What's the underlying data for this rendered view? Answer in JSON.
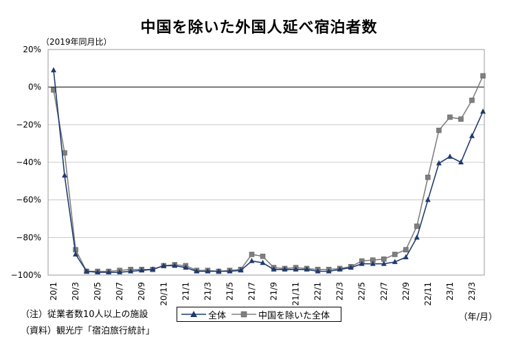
{
  "title": "中国を除いた外国人延べ宿泊者数",
  "unit_label": "（2019年同月比）",
  "notes": [
    "（注）従業者数10人以上の施設",
    "（資料）観光庁「宿泊旅行統計」"
  ],
  "x_unit_label": "（年/月）",
  "colors": {
    "all": "#1f3a6e",
    "ex_china": "#7f7f7f"
  },
  "chart_data": {
    "type": "line",
    "title": "中国を除いた外国人延べ宿泊者数",
    "ylabel": "（2019年同月比）",
    "xlabel": "（年/月）",
    "ylim": [
      -100,
      20
    ],
    "yticks": [
      20,
      0,
      -20,
      -40,
      -60,
      -80,
      -100
    ],
    "ytick_labels": [
      "20%",
      "0%",
      "−20%",
      "−40%",
      "−60%",
      "−80%",
      "−100%"
    ],
    "categories": [
      "20/1",
      "20/2",
      "20/3",
      "20/4",
      "20/5",
      "20/6",
      "20/7",
      "20/8",
      "20/9",
      "20/10",
      "20/11",
      "20/12",
      "21/1",
      "21/2",
      "21/3",
      "21/4",
      "21/5",
      "21/6",
      "21/7",
      "21/8",
      "21/9",
      "21/10",
      "21/11",
      "21/12",
      "22/1",
      "22/2",
      "22/3",
      "22/4",
      "22/5",
      "22/6",
      "22/7",
      "22/8",
      "22/9",
      "22/10",
      "22/11",
      "22/12",
      "23/1",
      "23/2",
      "23/3",
      "23/4"
    ],
    "xtick_labels": [
      "20/1",
      "20/3",
      "20/5",
      "20/7",
      "20/9",
      "20/11",
      "21/1",
      "21/3",
      "21/5",
      "21/7",
      "21/9",
      "21/11",
      "22/1",
      "22/3",
      "22/5",
      "22/7",
      "22/9",
      "22/11",
      "23/1",
      "23/3"
    ],
    "grid": true,
    "legend_position": "bottom",
    "series": [
      {
        "name": "全体",
        "marker": "triangle",
        "values": [
          9,
          -47,
          -89,
          -98,
          -98.5,
          -98.5,
          -98.5,
          -98,
          -97.5,
          -97,
          -95,
          -95,
          -96,
          -98,
          -98,
          -98,
          -98,
          -97.5,
          -92.5,
          -93.5,
          -97,
          -97,
          -97,
          -97,
          -98,
          -98,
          -97,
          -96,
          -94,
          -94,
          -94,
          -93,
          -90.5,
          -80,
          -60,
          -40.5,
          -37,
          -40,
          -26,
          -13
        ]
      },
      {
        "name": "中国を除いた全体",
        "marker": "square",
        "values": [
          -1.5,
          -35,
          -86.5,
          -98,
          -98,
          -98,
          -97.5,
          -97,
          -97,
          -97,
          -95,
          -94.5,
          -95,
          -97.5,
          -97.5,
          -98,
          -97.5,
          -97,
          -89,
          -90,
          -96,
          -96.5,
          -96,
          -96.5,
          -97,
          -97,
          -96.5,
          -95.5,
          -92.5,
          -92,
          -91.5,
          -89,
          -86.5,
          -74,
          -48,
          -23,
          -16,
          -17,
          -7,
          6
        ]
      }
    ]
  }
}
